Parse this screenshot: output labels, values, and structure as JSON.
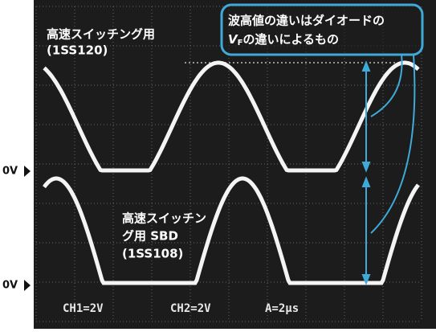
{
  "upper_trace_label": {
    "line1": "高速スイッチング用",
    "line2": "(1SS120)"
  },
  "lower_trace_label": {
    "line1": "高速スイッチン",
    "line2": "グ用 SBD",
    "line3": "(1SS108)"
  },
  "callout": {
    "line1": "波高値の違いはダイオードの",
    "symbol": "V",
    "subscript": "F",
    "line2": "の違いによるもの"
  },
  "zero_markers": [
    "0V",
    "0V"
  ],
  "scope_settings": {
    "ch1": "CH1=2V",
    "ch2": "CH2=2V",
    "timebase": "A=2μs"
  }
}
